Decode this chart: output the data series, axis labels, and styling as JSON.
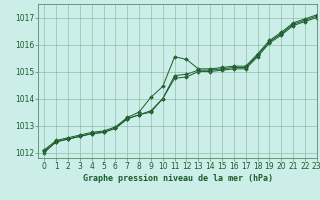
{
  "title": "Graphe pression niveau de la mer (hPa)",
  "background_color": "#cceee8",
  "grid_color": "#5a8a6a",
  "line_color": "#1a5c2a",
  "xlim": [
    -0.5,
    23
  ],
  "ylim": [
    1011.8,
    1017.5
  ],
  "yticks": [
    1012,
    1013,
    1014,
    1015,
    1016,
    1017
  ],
  "xticks": [
    0,
    1,
    2,
    3,
    4,
    5,
    6,
    7,
    8,
    9,
    10,
    11,
    12,
    13,
    14,
    15,
    16,
    17,
    18,
    19,
    20,
    21,
    22,
    23
  ],
  "series1_x": [
    0,
    1,
    2,
    3,
    4,
    5,
    6,
    7,
    8,
    9,
    10,
    11,
    12,
    13,
    14,
    15,
    16,
    17,
    18,
    19,
    20,
    21,
    22,
    23
  ],
  "series1_y": [
    1012.1,
    1012.45,
    1012.55,
    1012.65,
    1012.75,
    1012.8,
    1012.95,
    1013.3,
    1013.5,
    1014.05,
    1014.45,
    1015.55,
    1015.45,
    1015.1,
    1015.1,
    1015.15,
    1015.2,
    1015.2,
    1015.65,
    1016.15,
    1016.45,
    1016.8,
    1016.95,
    1017.1
  ],
  "series2_x": [
    0,
    1,
    2,
    3,
    4,
    5,
    6,
    7,
    8,
    9,
    10,
    11,
    12,
    13,
    14,
    15,
    16,
    17,
    18,
    19,
    20,
    21,
    22,
    23
  ],
  "series2_y": [
    1012.05,
    1012.4,
    1012.5,
    1012.6,
    1012.7,
    1012.75,
    1012.9,
    1013.25,
    1013.4,
    1013.55,
    1014.0,
    1014.85,
    1014.9,
    1015.05,
    1015.05,
    1015.1,
    1015.15,
    1015.15,
    1015.6,
    1016.1,
    1016.4,
    1016.75,
    1016.9,
    1017.05
  ],
  "series3_x": [
    0,
    1,
    2,
    3,
    4,
    5,
    6,
    7,
    8,
    9,
    10,
    11,
    12,
    13,
    14,
    15,
    16,
    17,
    18,
    19,
    20,
    21,
    22,
    23
  ],
  "series3_y": [
    1012.0,
    1012.4,
    1012.5,
    1012.6,
    1012.7,
    1012.75,
    1012.9,
    1013.25,
    1013.4,
    1013.5,
    1014.0,
    1014.75,
    1014.8,
    1015.0,
    1015.0,
    1015.05,
    1015.1,
    1015.1,
    1015.55,
    1016.05,
    1016.35,
    1016.7,
    1016.85,
    1017.0
  ]
}
